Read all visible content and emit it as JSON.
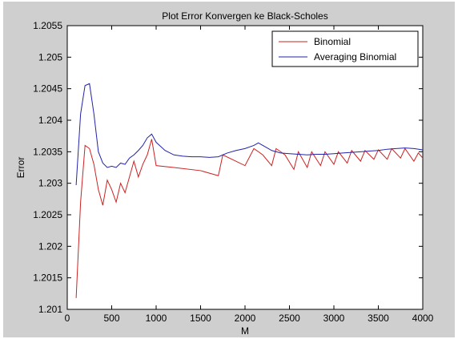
{
  "chart_data": {
    "type": "line",
    "title": "Plot Error Konvergen ke Black-Scholes",
    "xlabel": "M",
    "ylabel": "Error",
    "xlim": [
      0,
      4000
    ],
    "ylim": [
      1.201,
      1.2055
    ],
    "x_ticks": [
      "0",
      "500",
      "1000",
      "1500",
      "2000",
      "2500",
      "3000",
      "3500",
      "4000"
    ],
    "y_ticks": [
      "1.201",
      "1.2015",
      "1.202",
      "1.2025",
      "1.203",
      "1.2035",
      "1.204",
      "1.2045",
      "1.205",
      "1.2055"
    ],
    "grid": false,
    "legend_position": "top-right",
    "series": [
      {
        "name": "Binomial",
        "color": "#cc2222",
        "points": [
          [
            100,
            1.20118
          ],
          [
            150,
            1.2027
          ],
          [
            200,
            1.2036
          ],
          [
            250,
            1.20355
          ],
          [
            300,
            1.2033
          ],
          [
            350,
            1.2029
          ],
          [
            400,
            1.20265
          ],
          [
            450,
            1.20305
          ],
          [
            500,
            1.2029
          ],
          [
            550,
            1.2027
          ],
          [
            600,
            1.203
          ],
          [
            650,
            1.20285
          ],
          [
            700,
            1.2031
          ],
          [
            750,
            1.20335
          ],
          [
            800,
            1.2031
          ],
          [
            850,
            1.2033
          ],
          [
            900,
            1.20345
          ],
          [
            950,
            1.2037
          ],
          [
            1000,
            1.20328
          ],
          [
            1200,
            1.20325
          ],
          [
            1500,
            1.2032
          ],
          [
            1700,
            1.20312
          ],
          [
            1750,
            1.20345
          ],
          [
            2000,
            1.20328
          ],
          [
            2100,
            1.20355
          ],
          [
            2200,
            1.20345
          ],
          [
            2300,
            1.20328
          ],
          [
            2350,
            1.20355
          ],
          [
            2450,
            1.20345
          ],
          [
            2550,
            1.20322
          ],
          [
            2600,
            1.2035
          ],
          [
            2700,
            1.20325
          ],
          [
            2750,
            1.2035
          ],
          [
            2850,
            1.20328
          ],
          [
            2900,
            1.2035
          ],
          [
            3000,
            1.2033
          ],
          [
            3050,
            1.2035
          ],
          [
            3150,
            1.20332
          ],
          [
            3200,
            1.20352
          ],
          [
            3300,
            1.20335
          ],
          [
            3350,
            1.20352
          ],
          [
            3450,
            1.20338
          ],
          [
            3500,
            1.20353
          ],
          [
            3600,
            1.20338
          ],
          [
            3650,
            1.20355
          ],
          [
            3750,
            1.2034
          ],
          [
            3800,
            1.20355
          ],
          [
            3900,
            1.20335
          ],
          [
            3950,
            1.20348
          ],
          [
            4000,
            1.2034
          ]
        ]
      },
      {
        "name": "Averaging Binomial",
        "color": "#2222aa",
        "points": [
          [
            100,
            1.20297
          ],
          [
            150,
            1.2041
          ],
          [
            200,
            1.20455
          ],
          [
            250,
            1.20458
          ],
          [
            300,
            1.2041
          ],
          [
            350,
            1.2035
          ],
          [
            400,
            1.20332
          ],
          [
            450,
            1.20325
          ],
          [
            500,
            1.20327
          ],
          [
            550,
            1.20325
          ],
          [
            600,
            1.20332
          ],
          [
            650,
            1.2033
          ],
          [
            700,
            1.2034
          ],
          [
            750,
            1.20345
          ],
          [
            800,
            1.20352
          ],
          [
            850,
            1.2036
          ],
          [
            900,
            1.20372
          ],
          [
            950,
            1.20378
          ],
          [
            1000,
            1.20365
          ],
          [
            1100,
            1.20352
          ],
          [
            1200,
            1.20345
          ],
          [
            1300,
            1.20343
          ],
          [
            1400,
            1.20342
          ],
          [
            1500,
            1.20342
          ],
          [
            1600,
            1.20341
          ],
          [
            1700,
            1.20342
          ],
          [
            1800,
            1.20348
          ],
          [
            1900,
            1.20352
          ],
          [
            2000,
            1.20355
          ],
          [
            2100,
            1.2036
          ],
          [
            2150,
            1.20364
          ],
          [
            2200,
            1.2036
          ],
          [
            2300,
            1.20352
          ],
          [
            2400,
            1.20348
          ],
          [
            2500,
            1.20347
          ],
          [
            2600,
            1.20346
          ],
          [
            2700,
            1.20345
          ],
          [
            2800,
            1.20346
          ],
          [
            2900,
            1.20346
          ],
          [
            3000,
            1.20347
          ],
          [
            3100,
            1.20348
          ],
          [
            3200,
            1.20349
          ],
          [
            3300,
            1.2035
          ],
          [
            3400,
            1.20351
          ],
          [
            3500,
            1.20352
          ],
          [
            3600,
            1.20354
          ],
          [
            3700,
            1.20355
          ],
          [
            3800,
            1.20356
          ],
          [
            3900,
            1.20355
          ],
          [
            4000,
            1.20353
          ]
        ]
      }
    ]
  }
}
